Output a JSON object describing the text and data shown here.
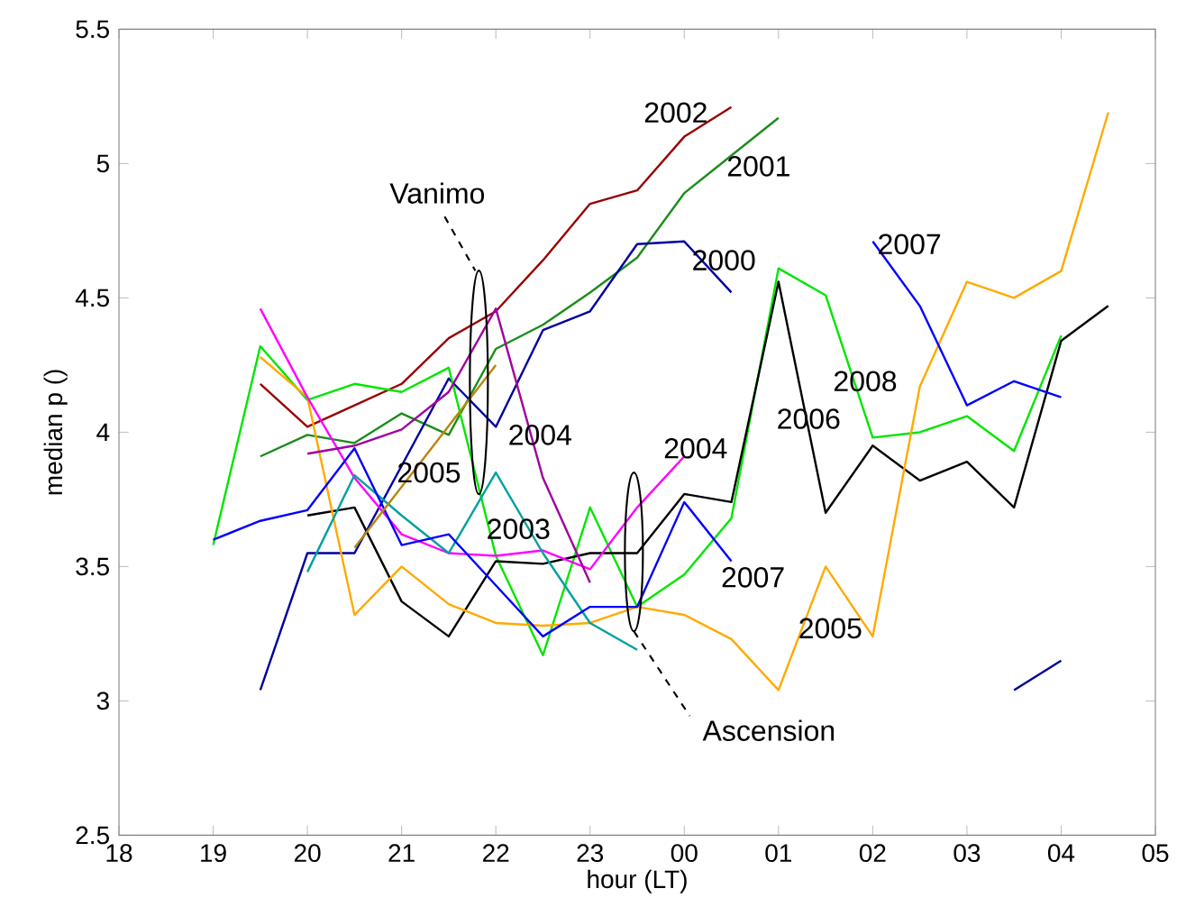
{
  "chart_data": {
    "type": "line",
    "xlabel": "hour (LT)",
    "ylabel": "median p ()",
    "xlim": [
      "2000-01-01T18:00",
      "2000-01-02T05:00"
    ],
    "ylim": [
      2.5,
      5.5
    ],
    "xticks": [
      {
        "value": "2000-01-01T18:00",
        "label": "18"
      },
      {
        "value": "2000-01-01T19:00",
        "label": "19"
      },
      {
        "value": "2000-01-01T20:00",
        "label": "20"
      },
      {
        "value": "2000-01-01T21:00",
        "label": "21"
      },
      {
        "value": "2000-01-01T22:00",
        "label": "22"
      },
      {
        "value": "2000-01-01T23:00",
        "label": "23"
      },
      {
        "value": "2000-01-02T00:00",
        "label": "00"
      },
      {
        "value": "2000-01-02T01:00",
        "label": "01"
      },
      {
        "value": "2000-01-02T02:00",
        "label": "02"
      },
      {
        "value": "2000-01-02T03:00",
        "label": "03"
      },
      {
        "value": "2000-01-02T04:00",
        "label": "04"
      },
      {
        "value": "2000-01-02T05:00",
        "label": "05"
      }
    ],
    "yticks": [
      2.5,
      3,
      3.5,
      4,
      4.5,
      5,
      5.5
    ],
    "series": [
      {
        "color": "#990000",
        "x": [
          "2000-01-01T19:30",
          "2000-01-01T20:00",
          "2000-01-01T20:30",
          "2000-01-01T21:00",
          "2000-01-01T21:30",
          "2000-01-01T22:00",
          "2000-01-01T22:30",
          "2000-01-01T23:00",
          "2000-01-01T23:30",
          "2000-01-02T00:00",
          "2000-01-02T00:30"
        ],
        "values": [
          4.18,
          4.02,
          4.1,
          4.18,
          4.35,
          4.45,
          4.64,
          4.85,
          4.9,
          5.1,
          5.21
        ]
      },
      {
        "color": "#1a8c1a",
        "x": [
          "2000-01-01T19:30",
          "2000-01-01T20:00",
          "2000-01-01T20:30",
          "2000-01-01T21:00",
          "2000-01-01T21:30",
          "2000-01-01T22:00",
          "2000-01-01T22:30",
          "2000-01-01T23:00",
          "2000-01-01T23:30",
          "2000-01-02T00:00",
          "2000-01-02T00:30",
          "2000-01-02T01:00"
        ],
        "values": [
          3.91,
          3.99,
          3.96,
          4.07,
          3.99,
          4.31,
          4.4,
          4.52,
          4.65,
          4.89,
          5.03,
          5.17
        ]
      },
      {
        "color": "#0000a0",
        "x": [
          "2000-01-01T19:30",
          "2000-01-01T20:00",
          "2000-01-01T20:30",
          "2000-01-01T21:30",
          "2000-01-01T22:00",
          "2000-01-01T22:30",
          "2000-01-01T23:00",
          "2000-01-01T23:30",
          "2000-01-02T00:00",
          "2000-01-02T00:30"
        ],
        "values": [
          3.04,
          3.55,
          3.55,
          4.2,
          4.02,
          4.38,
          4.45,
          4.7,
          4.71,
          4.52
        ]
      },
      {
        "color": "#00e600",
        "x": [
          "2000-01-01T19:00",
          "2000-01-01T19:30",
          "2000-01-01T20:00",
          "2000-01-01T20:30",
          "2000-01-01T21:00",
          "2000-01-01T21:30",
          "2000-01-01T22:00",
          "2000-01-01T22:30",
          "2000-01-01T23:00",
          "2000-01-01T23:30",
          "2000-01-02T00:00",
          "2000-01-02T00:30",
          "2000-01-02T01:00",
          "2000-01-02T01:30",
          "2000-01-02T02:00",
          "2000-01-02T02:30",
          "2000-01-02T03:00",
          "2000-01-02T03:30",
          "2000-01-02T04:00"
        ],
        "values": [
          3.58,
          4.32,
          4.12,
          4.18,
          4.15,
          4.24,
          3.54,
          3.17,
          3.72,
          3.35,
          3.47,
          3.68,
          4.61,
          4.51,
          3.98,
          4.0,
          4.06,
          3.93,
          4.36
        ]
      },
      {
        "color": "#000000",
        "x": [
          "2000-01-01T20:00",
          "2000-01-01T20:30",
          "2000-01-01T21:00",
          "2000-01-01T21:30",
          "2000-01-01T22:00",
          "2000-01-01T22:30",
          "2000-01-01T23:00",
          "2000-01-01T23:30",
          "2000-01-02T00:00",
          "2000-01-02T00:30",
          "2000-01-02T01:00",
          "2000-01-02T01:30",
          "2000-01-02T02:00",
          "2000-01-02T02:30",
          "2000-01-02T03:00",
          "2000-01-02T03:30",
          "2000-01-02T04:00",
          "2000-01-02T04:30"
        ],
        "values": [
          3.69,
          3.72,
          3.37,
          3.24,
          3.52,
          3.51,
          3.55,
          3.55,
          3.77,
          3.74,
          4.56,
          3.7,
          3.95,
          3.82,
          3.89,
          3.72,
          4.34,
          4.47
        ]
      },
      {
        "color": "#ffaa00",
        "x": [
          "2000-01-01T19:30",
          "2000-01-01T20:00",
          "2000-01-01T20:30",
          "2000-01-01T21:00",
          "2000-01-01T21:30",
          "2000-01-01T22:00",
          "2000-01-01T22:30",
          "2000-01-01T23:00",
          "2000-01-01T23:30",
          "2000-01-02T00:00",
          "2000-01-02T00:30",
          "2000-01-02T01:00",
          "2000-01-02T01:30",
          "2000-01-02T02:00",
          "2000-01-02T02:30",
          "2000-01-02T03:00",
          "2000-01-02T03:30",
          "2000-01-02T04:00",
          "2000-01-02T04:30"
        ],
        "values": [
          4.28,
          4.13,
          3.32,
          3.5,
          3.36,
          3.29,
          3.28,
          3.29,
          3.35,
          3.32,
          3.23,
          3.04,
          3.5,
          3.24,
          4.17,
          4.56,
          4.5,
          4.6,
          5.19
        ]
      },
      {
        "color": "#ff00ff",
        "x": [
          "2000-01-01T19:30",
          "2000-01-01T20:00",
          "2000-01-01T20:30",
          "2000-01-01T21:00",
          "2000-01-01T21:30",
          "2000-01-01T22:00",
          "2000-01-01T22:30",
          "2000-01-01T23:00",
          "2000-01-01T23:30",
          "2000-01-02T00:00"
        ],
        "values": [
          4.46,
          4.13,
          3.83,
          3.62,
          3.55,
          3.54,
          3.56,
          3.49,
          3.72,
          3.91
        ]
      },
      {
        "color": "#a000a0",
        "x": [
          "2000-01-01T20:00",
          "2000-01-01T20:30",
          "2000-01-01T21:00",
          "2000-01-01T21:30",
          "2000-01-01T22:00",
          "2000-01-01T22:30",
          "2000-01-01T23:00"
        ],
        "values": [
          3.92,
          3.95,
          4.01,
          4.15,
          4.46,
          3.83,
          3.44
        ]
      },
      {
        "color": "#00a0a0",
        "x": [
          "2000-01-01T20:00",
          "2000-01-01T20:30",
          "2000-01-01T21:00",
          "2000-01-01T21:30",
          "2000-01-01T22:00",
          "2000-01-01T22:30",
          "2000-01-01T23:00",
          "2000-01-01T23:30"
        ],
        "values": [
          3.48,
          3.84,
          3.69,
          3.55,
          3.85,
          3.55,
          3.29,
          3.19
        ]
      },
      {
        "color": "#0000ff",
        "x": [
          "2000-01-01T19:00",
          "2000-01-01T19:30",
          "2000-01-01T20:00",
          "2000-01-01T20:30",
          "2000-01-01T21:00",
          "2000-01-01T21:30",
          "2000-01-01T22:00",
          "2000-01-01T22:30",
          "2000-01-01T23:00",
          "2000-01-01T23:30",
          "2000-01-02T00:00",
          "2000-01-02T00:30"
        ],
        "values": [
          3.6,
          3.67,
          3.71,
          3.94,
          3.58,
          3.62,
          3.43,
          3.24,
          3.35,
          3.35,
          3.74,
          3.52
        ]
      },
      {
        "color": "#0000ff",
        "x": [
          "2000-01-02T02:00",
          "2000-01-02T02:30",
          "2000-01-02T03:00",
          "2000-01-02T03:30",
          "2000-01-02T04:00"
        ],
        "values": [
          4.71,
          4.47,
          4.1,
          4.19,
          4.13
        ]
      },
      {
        "color": "#0000a0",
        "x": [
          "2000-01-02T03:30",
          "2000-01-02T04:00"
        ],
        "values": [
          3.04,
          3.15
        ]
      },
      {
        "color": "#b8860b",
        "x": [
          "2000-01-01T20:30",
          "2000-01-01T22:00"
        ],
        "values": [
          3.57,
          4.25
        ]
      }
    ],
    "annotations": [
      "2002",
      "2001",
      "2000",
      "2007",
      "2008",
      "2006",
      "2004",
      "2005",
      "2003",
      "2004",
      "2007",
      "2005",
      "Vanimo",
      "Ascension"
    ]
  }
}
